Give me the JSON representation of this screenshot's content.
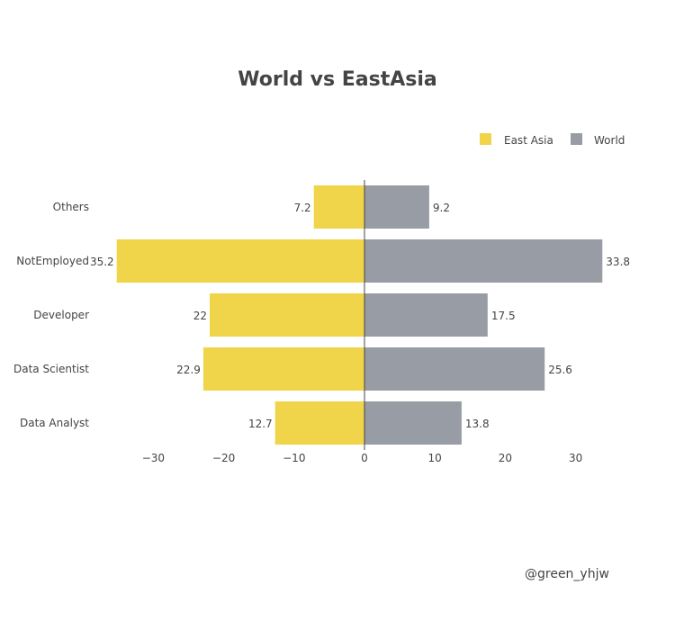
{
  "chart_data": {
    "type": "bar",
    "orientation": "horizontal",
    "title": "World vs EastAsia",
    "categories": [
      "Data Analyst",
      "Data Scientist",
      "Developer",
      "NotEmployed",
      "Others"
    ],
    "series": [
      {
        "name": "East Asia",
        "values": [
          12.7,
          22.9,
          22,
          35.2,
          7.2
        ],
        "direction": "negative",
        "color": "#f0d54a"
      },
      {
        "name": "World",
        "values": [
          13.8,
          25.6,
          17.5,
          33.8,
          9.2
        ],
        "direction": "positive",
        "color": "#989da5"
      }
    ],
    "xlim": [
      -35.2,
      33.8
    ],
    "xticks": [
      -30,
      -20,
      -10,
      0,
      10,
      20,
      30
    ],
    "xtick_labels": [
      "−30",
      "−20",
      "−10",
      "0",
      "10",
      "20",
      "30"
    ],
    "legend_position": "top-right",
    "grid": false
  },
  "watermark": "@green_yhjw"
}
